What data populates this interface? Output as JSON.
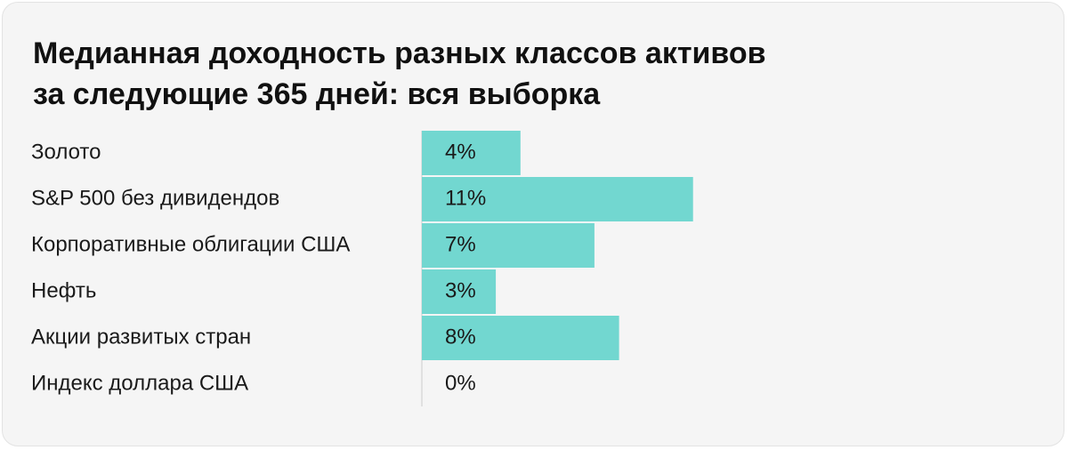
{
  "chart_data": {
    "type": "bar",
    "orientation": "horizontal",
    "title_lines": [
      "Медианная доходность разных классов активов",
      "за следующие 365 дней: вся выборка"
    ],
    "categories": [
      "Золото",
      "S&P 500 без дивидендов",
      "Корпоративные облигации США",
      "Нефть",
      "Акции развитых стран",
      "Индекс доллара США"
    ],
    "values": [
      4,
      11,
      7,
      3,
      8,
      0
    ],
    "value_labels": [
      "4%",
      "11%",
      "7%",
      "3%",
      "8%",
      "0%"
    ],
    "unit": "%",
    "xlim": [
      0,
      11
    ],
    "grid": false,
    "legend": "none",
    "bar_color": "#72d7d0",
    "axis_color": "#d9d9d9"
  }
}
